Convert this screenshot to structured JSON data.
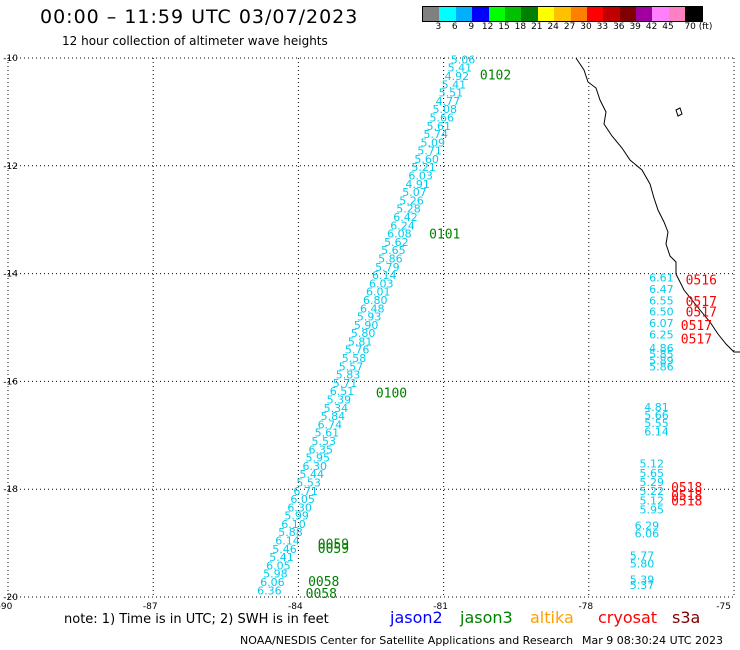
{
  "header": {
    "title": "00:00 – 11:59 UTC 03/07/2023",
    "subtitle": "12 hour collection of altimeter wave heights"
  },
  "colorbar": {
    "colors": [
      "#808080",
      "#00ffff",
      "#00b0ff",
      "#0000ff",
      "#00ff00",
      "#00c000",
      "#008000",
      "#ffff00",
      "#ffc000",
      "#ff8000",
      "#ff0000",
      "#c00000",
      "#800000",
      "#a000a0",
      "#ff80ff",
      "#ff80c0",
      "#000000"
    ],
    "labels": [
      "3",
      "6",
      "9",
      "12",
      "15",
      "18",
      "21",
      "24",
      "27",
      "30",
      "33",
      "36",
      "39",
      "42",
      "45",
      "70 (ft)"
    ]
  },
  "map": {
    "lon_range": [
      -90,
      -75
    ],
    "lat_range": [
      -20,
      -10
    ],
    "lon_ticks": [
      "-90",
      "-87",
      "-84",
      "-81",
      "-78",
      "-75"
    ],
    "lat_ticks": [
      "-10",
      "-12",
      "-14",
      "-16",
      "-18",
      "-20"
    ],
    "grid": "dotted",
    "coastline_color": "#000000",
    "tracks": [
      {
        "satellite": "jason3",
        "color": "#00ccee",
        "start": [
          -80.6,
          -10.1
        ],
        "end": [
          -84.6,
          -19.95
        ],
        "values": [
          "5.06",
          "5.41",
          "4.92",
          "5.41",
          "5.51",
          "4.77",
          "5.08",
          "5.66",
          "5.61",
          "5.74",
          "5.09",
          "5.71",
          "5.60",
          "5.21",
          "6.03",
          "4.91",
          "5.07",
          "5.26",
          "5.28",
          "6.42",
          "6.24",
          "6.08",
          "5.62",
          "5.65",
          "5.86",
          "5.79",
          "6.14",
          "6.03",
          "6.01",
          "6.80",
          "6.48",
          "5.93",
          "5.90",
          "5.80",
          "5.81",
          "5.76",
          "5.58",
          "5.57",
          "5.83",
          "5.71",
          "6.51",
          "5.39",
          "5.34",
          "5.84",
          "6.74",
          "5.61",
          "5.53",
          "6.35",
          "5.95",
          "6.30",
          "5.44",
          "5.53",
          "6.71",
          "6.05",
          "6.30",
          "5.99",
          "6.10",
          "5.88",
          "6.14",
          "5.46",
          "5.41",
          "6.05",
          "5.98",
          "6.06",
          "6.36"
        ]
      },
      {
        "satellite": "jason3",
        "color": "#00ccee",
        "start": [
          -76.5,
          -14.15
        ],
        "end": [
          -76.5,
          -15.2
        ],
        "values": [
          "6.61",
          "6.47",
          "6.55",
          "6.50",
          "6.07",
          "6.25"
        ]
      },
      {
        "satellite": "jason3",
        "color": "#00ccee",
        "start": [
          -76.5,
          -15.45
        ],
        "end": [
          -76.5,
          -15.8
        ],
        "values": [
          "4.86",
          "5.85",
          "5.89",
          "5.86"
        ]
      },
      {
        "satellite": "jason3",
        "color": "#00ccee",
        "start": [
          -76.6,
          -16.55
        ],
        "end": [
          -76.6,
          -17.0
        ],
        "values": [
          "4.81",
          "5.66",
          "5.55",
          "6.14"
        ]
      },
      {
        "satellite": "jason3",
        "color": "#00ccee",
        "start": [
          -76.7,
          -17.6
        ],
        "end": [
          -76.7,
          -18.45
        ],
        "values": [
          "5.12",
          "5.65",
          "5.29",
          "5.22",
          "5.12",
          "5.95"
        ]
      },
      {
        "satellite": "jason3",
        "color": "#00ccee",
        "start": [
          -76.8,
          -18.75
        ],
        "end": [
          -76.8,
          -18.9
        ],
        "values": [
          "6.29",
          "6.06"
        ]
      },
      {
        "satellite": "jason3",
        "color": "#00ccee",
        "start": [
          -76.9,
          -19.3
        ],
        "end": [
          -76.9,
          -19.45
        ],
        "values": [
          "5.77",
          "5.80"
        ]
      },
      {
        "satellite": "jason3",
        "color": "#00ccee",
        "start": [
          -76.9,
          -19.75
        ],
        "end": [
          -76.9,
          -19.85
        ],
        "values": [
          "5.39",
          "5.37"
        ]
      }
    ],
    "time_labels": [
      {
        "text": "0102",
        "color": "#008000",
        "lon": -80.25,
        "lat": -10.4
      },
      {
        "text": "0101",
        "color": "#008000",
        "lon": -81.3,
        "lat": -13.35
      },
      {
        "text": "0100",
        "color": "#008000",
        "lon": -82.4,
        "lat": -16.3
      },
      {
        "text": "0059",
        "color": "#008000",
        "lon": -83.6,
        "lat": -19.1
      },
      {
        "text": "0059",
        "color": "#008000",
        "lon": -83.6,
        "lat": -19.18
      },
      {
        "text": "0058",
        "color": "#008000",
        "lon": -83.8,
        "lat": -19.8
      },
      {
        "text": "0058",
        "color": "#008000",
        "lon": -83.85,
        "lat": -20.02
      },
      {
        "text": "0516",
        "color": "#ff0000",
        "lon": -76.0,
        "lat": -14.2
      },
      {
        "text": "0517",
        "color": "#ff0000",
        "lon": -76.0,
        "lat": -14.6
      },
      {
        "text": "0517",
        "color": "#ff0000",
        "lon": -76.0,
        "lat": -14.8
      },
      {
        "text": "0517",
        "color": "#ff0000",
        "lon": -76.1,
        "lat": -15.05
      },
      {
        "text": "0517",
        "color": "#ff0000",
        "lon": -76.1,
        "lat": -15.3
      },
      {
        "text": "0518",
        "color": "#ff0000",
        "lon": -76.3,
        "lat": -18.05
      },
      {
        "text": "0518",
        "color": "#ff0000",
        "lon": -76.3,
        "lat": -18.2
      },
      {
        "text": "0518",
        "color": "#ff0000",
        "lon": -76.3,
        "lat": -18.3
      }
    ]
  },
  "footer": {
    "note": "note: 1) Time is in UTC; 2) SWH is in feet",
    "satellites": [
      {
        "name": "jason2",
        "color": "#0000ff"
      },
      {
        "name": "jason3",
        "color": "#008000"
      },
      {
        "name": "altika",
        "color": "#ffa000"
      },
      {
        "name": "cryosat",
        "color": "#ff0000"
      },
      {
        "name": "s3a",
        "color": "#800000"
      }
    ],
    "credit": "NOAA/NESDIS Center for Satellite Applications and Research",
    "timestamp": "Mar  9 08:30:24 UTC 2023"
  }
}
